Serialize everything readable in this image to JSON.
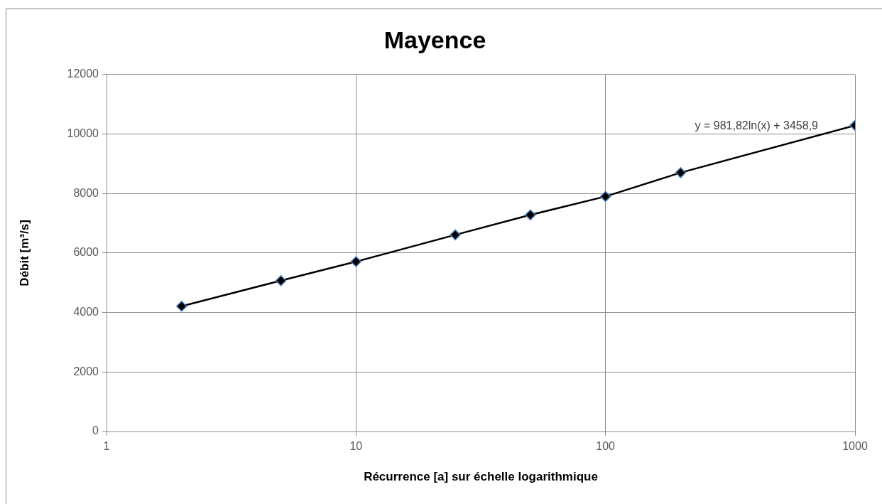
{
  "chart_data": {
    "type": "line",
    "title": "Mayence",
    "xlabel": "Récurrence [a] sur échelle logarithmique",
    "ylabel": "Débit [m³/s]",
    "x": [
      2,
      5,
      10,
      25,
      50,
      100,
      200,
      1000
    ],
    "values": [
      4210,
      5070,
      5710,
      6610,
      7280,
      7900,
      8700,
      10290
    ],
    "color": "#000000",
    "log": "x",
    "xlim": [
      1,
      1000
    ],
    "xticks": [
      1,
      10,
      100,
      1000
    ],
    "ylim": [
      0,
      12000
    ],
    "yticks": [
      0,
      2000,
      4000,
      6000,
      8000,
      10000,
      12000
    ],
    "grid": true,
    "marker": "diamond",
    "line_style": "solid",
    "annotations": [
      "y = 981,82ln(x) + 3458,9"
    ]
  }
}
